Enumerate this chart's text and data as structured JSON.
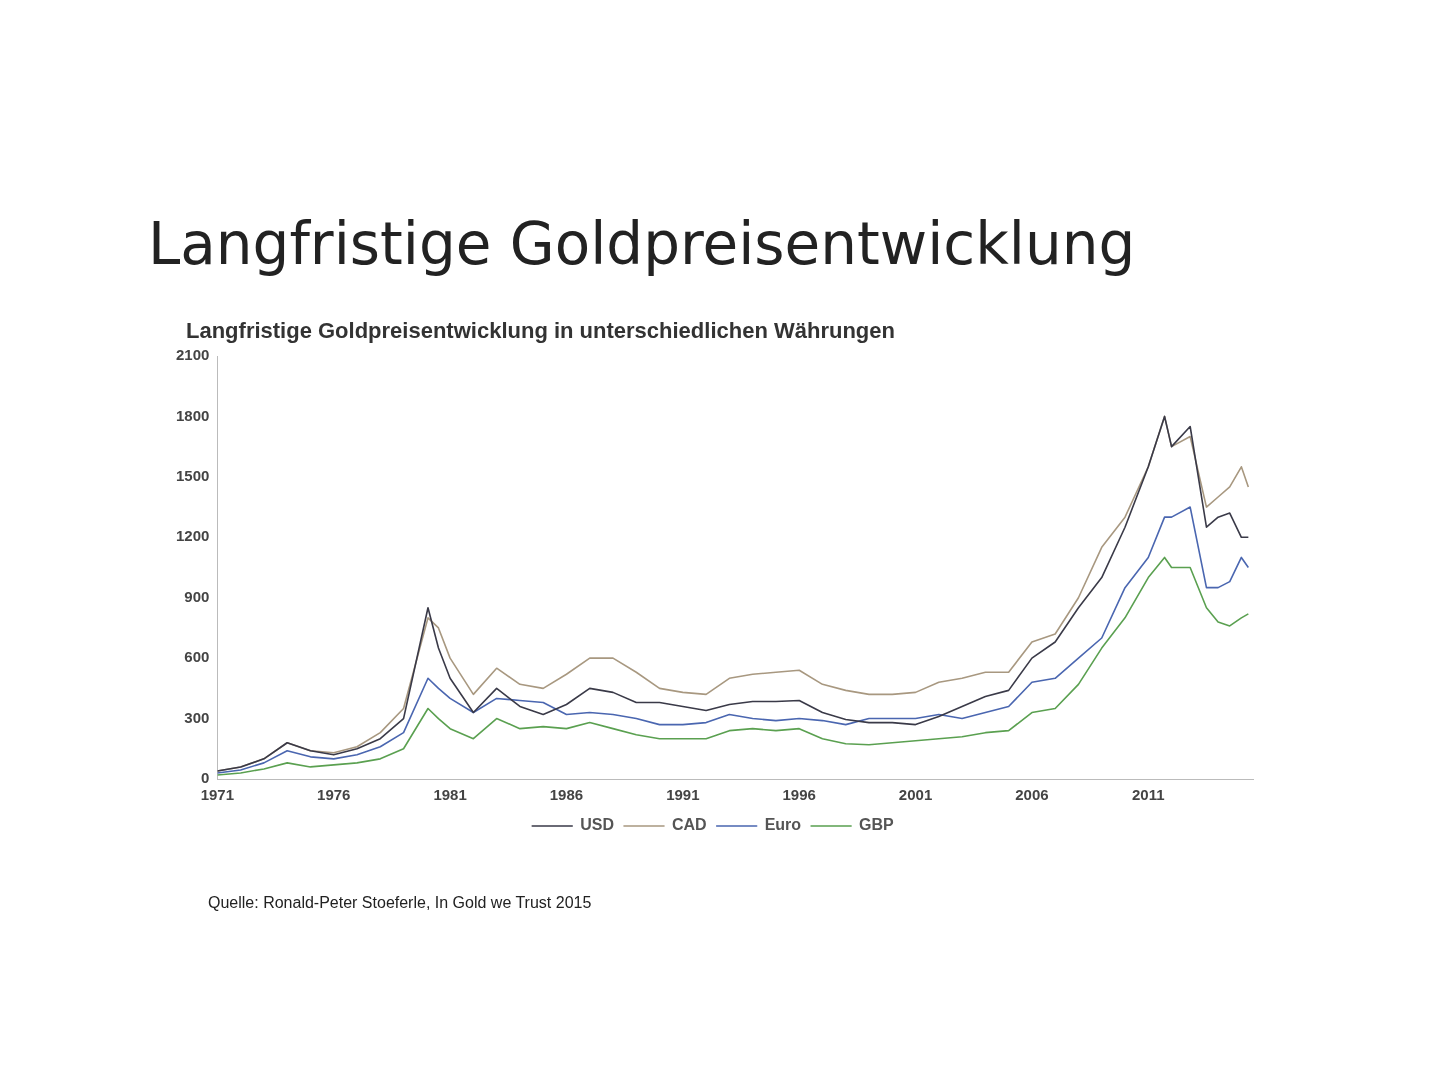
{
  "chart_data": {
    "type": "line",
    "title": "Langfristige Goldpreisentwicklung",
    "subtitle": "Langfristige Goldpreisentwicklung in unterschiedlichen Währungen",
    "annotations": [
      "Quelle: Ronald-Peter Stoeferle, In Gold we Trust 2015"
    ],
    "x": [
      1971,
      1972,
      1973,
      1974,
      1975,
      1976,
      1977,
      1978,
      1979,
      1980.05,
      1980.5,
      1981,
      1982,
      1983,
      1984,
      1985,
      1986,
      1987,
      1988,
      1989,
      1990,
      1991,
      1992,
      1993,
      1994,
      1995,
      1996,
      1997,
      1998,
      1999,
      2000,
      2001,
      2002,
      2003,
      2004,
      2005,
      2006,
      2007,
      2008,
      2009,
      2010,
      2011,
      2011.7,
      2012,
      2012.8,
      2013.5,
      2014,
      2014.5,
      2015,
      2015.3
    ],
    "series": [
      {
        "name": "USD",
        "color": "#3a3a48",
        "values": [
          40,
          60,
          100,
          180,
          140,
          120,
          150,
          200,
          300,
          850,
          650,
          500,
          330,
          450,
          360,
          320,
          370,
          450,
          430,
          380,
          380,
          360,
          340,
          370,
          385,
          385,
          390,
          330,
          295,
          280,
          280,
          270,
          310,
          360,
          410,
          440,
          600,
          680,
          850,
          1000,
          1250,
          1550,
          1800,
          1650,
          1750,
          1250,
          1300,
          1320,
          1200,
          1200
        ]
      },
      {
        "name": "CAD",
        "color": "#a89880",
        "values": [
          40,
          60,
          100,
          180,
          140,
          130,
          160,
          230,
          350,
          800,
          750,
          600,
          420,
          550,
          470,
          450,
          520,
          600,
          600,
          530,
          450,
          430,
          420,
          500,
          520,
          530,
          540,
          470,
          440,
          420,
          420,
          430,
          480,
          500,
          530,
          530,
          680,
          720,
          900,
          1150,
          1300,
          1550,
          1800,
          1650,
          1700,
          1350,
          1400,
          1450,
          1550,
          1450
        ]
      },
      {
        "name": "Euro",
        "color": "#4a66b0",
        "values": [
          30,
          45,
          80,
          140,
          110,
          100,
          120,
          160,
          230,
          500,
          450,
          400,
          330,
          400,
          390,
          380,
          320,
          330,
          320,
          300,
          270,
          270,
          280,
          320,
          300,
          290,
          300,
          290,
          270,
          300,
          300,
          300,
          320,
          300,
          330,
          360,
          480,
          500,
          600,
          700,
          950,
          1100,
          1300,
          1300,
          1350,
          950,
          950,
          980,
          1100,
          1050
        ]
      },
      {
        "name": "GBP",
        "color": "#5aa050",
        "values": [
          20,
          30,
          50,
          80,
          60,
          70,
          80,
          100,
          150,
          350,
          300,
          250,
          200,
          300,
          250,
          260,
          250,
          280,
          250,
          220,
          200,
          200,
          200,
          240,
          250,
          240,
          250,
          200,
          175,
          170,
          180,
          190,
          200,
          210,
          230,
          240,
          330,
          350,
          470,
          650,
          800,
          1000,
          1100,
          1050,
          1050,
          850,
          780,
          760,
          800,
          820
        ]
      }
    ],
    "xlim": [
      1971,
      2015.5
    ],
    "xticks": [
      1971,
      1976,
      1981,
      1986,
      1991,
      1996,
      2001,
      2006,
      2011
    ],
    "ylim": [
      0,
      2100
    ],
    "yticks": [
      0,
      300,
      600,
      900,
      1200,
      1500,
      1800,
      2100
    ],
    "grid": false,
    "legend": "bottom",
    "marker": "none",
    "line_style": "solid"
  }
}
